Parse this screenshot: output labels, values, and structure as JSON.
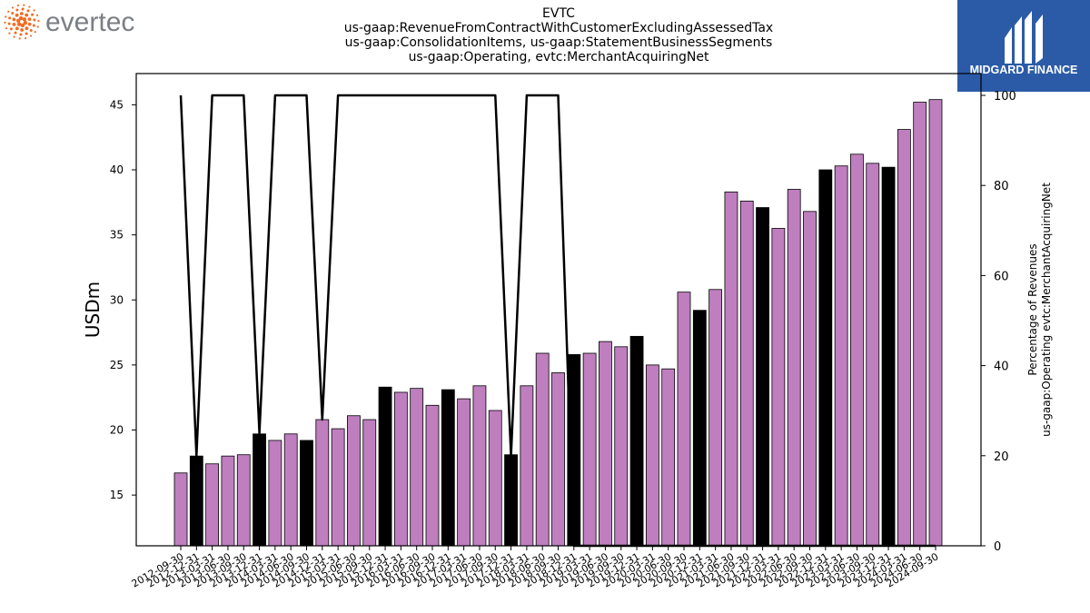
{
  "header": {
    "left_logo": {
      "icon": "evertec-dots-logo",
      "text": "evertec",
      "dot_color": "#f26b21",
      "text_color": "#7a7f85"
    },
    "right_logo": {
      "icon": "midgard-finance-logo",
      "text": "MIDGARD FINANCE",
      "bg_color": "#2b5ba7"
    },
    "title_lines": [
      "EVTC",
      "us-gaap:RevenueFromContractWithCustomerExcludingAssessedTax",
      "us-gaap:ConsolidationItems, us-gaap:StatementBusinessSegments",
      "us-gaap:Operating, evtc:MerchantAcquiringNet"
    ]
  },
  "chart_data": {
    "type": "bar",
    "ylabel": "USDm",
    "y2label_lines": [
      "Percentage of Revenues",
      "us-gaap:Operating evtc:MerchantAcquiringNet"
    ],
    "ylim": [
      11.1,
      47.4
    ],
    "y2lim": [
      0,
      100
    ],
    "yticks": [
      15,
      20,
      25,
      30,
      35,
      40,
      45
    ],
    "y2ticks": [
      0,
      20,
      40,
      60,
      80,
      100
    ],
    "colors": {
      "bar": "#bf7fbf",
      "highlight": "#000000",
      "line": "#000000"
    },
    "categories": [
      "2012-09-30",
      "2012-12-31",
      "2013-03-31",
      "2013-06-30",
      "2013-09-30",
      "2013-12-31",
      "2014-03-31",
      "2014-06-30",
      "2014-09-30",
      "2014-12-31",
      "2015-03-31",
      "2015-06-30",
      "2015-09-30",
      "2015-12-31",
      "2016-03-31",
      "2016-06-30",
      "2016-09-30",
      "2016-12-31",
      "2017-03-31",
      "2017-06-30",
      "2017-09-30",
      "2017-12-31",
      "2018-03-31",
      "2018-06-30",
      "2018-09-30",
      "2018-12-31",
      "2019-03-31",
      "2019-06-30",
      "2019-09-30",
      "2019-12-31",
      "2020-03-31",
      "2020-06-30",
      "2020-09-30",
      "2020-12-31",
      "2021-03-31",
      "2021-06-30",
      "2021-09-30",
      "2021-12-31",
      "2022-03-31",
      "2022-06-30",
      "2022-09-30",
      "2022-12-31",
      "2023-03-31",
      "2023-06-30",
      "2023-09-30",
      "2023-12-31",
      "2024-03-31",
      "2024-06-30",
      "2024-09-30"
    ],
    "values": [
      16.7,
      18.0,
      17.4,
      18.0,
      18.1,
      19.7,
      19.2,
      19.7,
      19.2,
      20.8,
      20.1,
      21.1,
      20.8,
      23.3,
      22.9,
      23.2,
      21.9,
      23.1,
      22.4,
      23.4,
      21.5,
      18.1,
      23.4,
      25.9,
      24.4,
      25.8,
      25.9,
      26.8,
      26.4,
      27.2,
      25.0,
      24.7,
      30.6,
      29.2,
      30.8,
      38.3,
      37.6,
      37.1,
      35.5,
      38.5,
      36.8,
      40.0,
      40.3,
      41.2,
      40.5,
      40.2,
      43.1,
      45.2,
      45.4
    ],
    "highlighted": [
      false,
      true,
      false,
      false,
      false,
      true,
      false,
      false,
      true,
      false,
      false,
      false,
      false,
      true,
      false,
      false,
      false,
      true,
      false,
      false,
      false,
      true,
      false,
      false,
      false,
      true,
      false,
      false,
      false,
      true,
      false,
      false,
      false,
      true,
      false,
      false,
      false,
      true,
      false,
      false,
      false,
      true,
      false,
      false,
      false,
      true,
      false,
      false,
      false
    ],
    "pct_values": [
      100,
      20,
      100,
      100,
      100,
      25,
      100,
      100,
      100,
      28,
      100,
      100,
      100,
      100,
      100,
      100,
      100,
      100,
      100,
      100,
      100,
      20,
      100,
      100,
      100,
      0,
      0,
      0,
      0,
      0,
      0,
      0,
      0,
      0,
      0,
      0,
      0,
      0,
      0,
      0,
      0,
      0,
      0,
      0,
      0,
      0,
      0,
      0,
      0
    ]
  }
}
